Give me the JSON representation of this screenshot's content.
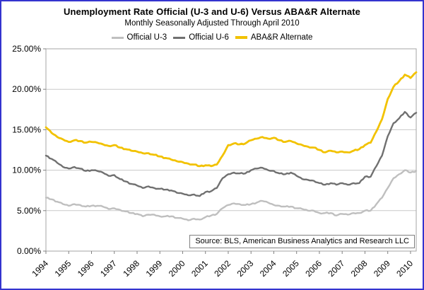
{
  "window": {
    "border_color": "#3434CF",
    "background": "#FFFFFF"
  },
  "header": {
    "title": "Unemployment Rate Official (U-3 and U-6) Versus ABA&R Alternate",
    "subtitle": "Monthly Seasonally Adjusted Through April 2010"
  },
  "source_note": "Source: BLS, American Business Analytics and Research LLC",
  "chart_data": {
    "type": "line",
    "title": "Unemployment Rate Official (U-3 and U-6) Versus ABA&R Alternate",
    "subtitle": "Monthly Seasonally Adjusted Through April 2010",
    "legend_position": "top-center",
    "grid": "horizontal gridlines at every 5%",
    "xlabel": "",
    "ylabel": "",
    "xlim": [
      1994,
      2010.25
    ],
    "ylim": [
      0,
      25
    ],
    "x_ticks": [
      1994,
      1995,
      1996,
      1997,
      1998,
      1999,
      2000,
      2001,
      2002,
      2003,
      2004,
      2005,
      2006,
      2007,
      2008,
      2009,
      2010
    ],
    "x_tick_labels": [
      "1994",
      "1995",
      "1996",
      "1997",
      "1998",
      "1999",
      "2000",
      "2001",
      "2002",
      "2003",
      "2004",
      "2005",
      "2006",
      "2007",
      "2008",
      "2009",
      "2010"
    ],
    "y_ticks": [
      0,
      5,
      10,
      15,
      20,
      25
    ],
    "y_tick_labels": [
      "0.00%",
      "5.00%",
      "10.00%",
      "15.00%",
      "20.00%",
      "25.00%"
    ],
    "x_unit": "year (quarterly samples of monthly data, Jan 1994 - Apr 2010)",
    "y_unit": "percent",
    "x": [
      1994,
      1994.25,
      1994.5,
      1994.75,
      1995,
      1995.25,
      1995.5,
      1995.75,
      1996,
      1996.25,
      1996.5,
      1996.75,
      1997,
      1997.25,
      1997.5,
      1997.75,
      1998,
      1998.25,
      1998.5,
      1998.75,
      1999,
      1999.25,
      1999.5,
      1999.75,
      2000,
      2000.25,
      2000.5,
      2000.75,
      2001,
      2001.25,
      2001.5,
      2001.75,
      2002,
      2002.25,
      2002.5,
      2002.75,
      2003,
      2003.25,
      2003.5,
      2003.75,
      2004,
      2004.25,
      2004.5,
      2004.75,
      2005,
      2005.25,
      2005.5,
      2005.75,
      2006,
      2006.25,
      2006.5,
      2006.75,
      2007,
      2007.25,
      2007.5,
      2007.75,
      2008,
      2008.25,
      2008.5,
      2008.75,
      2009,
      2009.25,
      2009.5,
      2009.75,
      2010,
      2010.25
    ],
    "series": [
      {
        "name": "Official U-3",
        "color": "#BFBFBF",
        "values": [
          6.6,
          6.4,
          6.1,
          5.8,
          5.6,
          5.8,
          5.7,
          5.5,
          5.6,
          5.6,
          5.5,
          5.2,
          5.3,
          5.1,
          4.9,
          4.7,
          4.6,
          4.3,
          4.5,
          4.5,
          4.3,
          4.3,
          4.3,
          4.1,
          4.0,
          3.8,
          4.0,
          3.9,
          4.2,
          4.4,
          4.6,
          5.3,
          5.7,
          5.9,
          5.8,
          5.7,
          5.8,
          6.0,
          6.2,
          6.0,
          5.7,
          5.6,
          5.5,
          5.5,
          5.3,
          5.2,
          5.0,
          5.0,
          4.7,
          4.7,
          4.7,
          4.4,
          4.6,
          4.5,
          4.7,
          4.7,
          5.0,
          5.0,
          5.8,
          6.6,
          7.8,
          9.0,
          9.5,
          10.0,
          9.7,
          9.9
        ]
      },
      {
        "name": "Official U-6",
        "color": "#707070",
        "values": [
          11.8,
          11.4,
          10.9,
          10.4,
          10.2,
          10.4,
          10.2,
          9.9,
          10.0,
          9.9,
          9.7,
          9.3,
          9.4,
          8.9,
          8.6,
          8.3,
          8.1,
          7.8,
          8.0,
          7.8,
          7.7,
          7.6,
          7.5,
          7.2,
          7.1,
          6.9,
          7.0,
          6.8,
          7.3,
          7.4,
          7.8,
          9.0,
          9.5,
          9.7,
          9.6,
          9.6,
          10.0,
          10.2,
          10.3,
          10.0,
          9.9,
          9.6,
          9.5,
          9.7,
          9.3,
          8.9,
          8.8,
          8.7,
          8.4,
          8.2,
          8.4,
          8.2,
          8.4,
          8.2,
          8.4,
          8.4,
          9.2,
          9.2,
          10.5,
          11.8,
          14.2,
          15.8,
          16.4,
          17.2,
          16.5,
          17.1
        ]
      },
      {
        "name": "ABA&R Alternate",
        "color": "#F2C200",
        "values": [
          15.3,
          14.6,
          14.1,
          13.8,
          13.5,
          13.7,
          13.6,
          13.4,
          13.5,
          13.4,
          13.2,
          13.0,
          13.1,
          12.8,
          12.6,
          12.4,
          12.3,
          12.1,
          12.1,
          11.9,
          11.7,
          11.5,
          11.3,
          11.1,
          11.0,
          10.8,
          10.7,
          10.5,
          10.6,
          10.5,
          10.7,
          11.8,
          13.1,
          13.3,
          13.2,
          13.3,
          13.7,
          13.9,
          14.1,
          13.9,
          14.0,
          13.7,
          13.5,
          13.6,
          13.3,
          13.1,
          12.9,
          12.8,
          12.5,
          12.2,
          12.4,
          12.2,
          12.3,
          12.2,
          12.4,
          12.6,
          13.1,
          13.4,
          14.8,
          16.3,
          18.8,
          20.3,
          21.0,
          21.8,
          21.4,
          22.1
        ]
      }
    ],
    "plot_style": {
      "gridline_color": "#C9C9C9",
      "frame_color": "#A6A6A6",
      "axis_tick_color": "#808080"
    }
  }
}
